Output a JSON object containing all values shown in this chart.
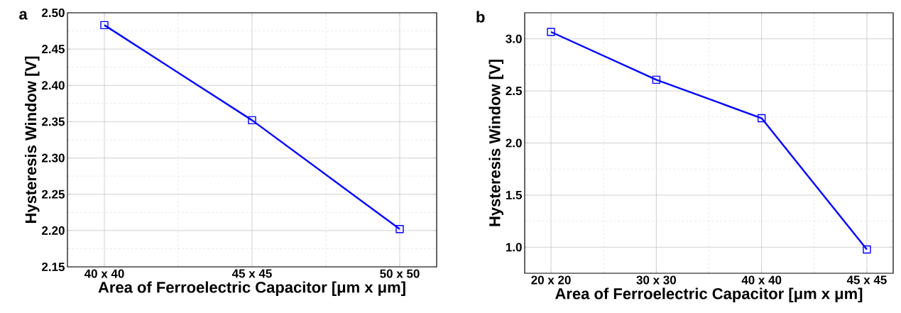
{
  "chart_data": [
    {
      "type": "line",
      "title": "a",
      "xlabel": "Area of Ferroelectric Capacitor [μm x μm]",
      "ylabel": "Hysteresis Window [V]",
      "categories": [
        "40 x 40",
        "45 x 45",
        "50 x 50"
      ],
      "series": [
        {
          "color": "#0000ff",
          "values": [
            2.483,
            2.352,
            2.202
          ]
        }
      ],
      "ylim": [
        2.15,
        2.5
      ],
      "yticks": [
        2.15,
        {
          "value": 2.2,
          "label": "2.20"
        },
        2.25,
        {
          "value": 2.3,
          "label": "2.30"
        },
        2.35,
        {
          "value": 2.4,
          "label": "2.40"
        },
        2.45,
        {
          "value": 2.5,
          "label": "2.50"
        }
      ],
      "grid": true,
      "marker": "square",
      "line_style": "solid"
    },
    {
      "type": "line",
      "title": "b",
      "xlabel": "Area of Ferroelectric Capacitor [μm x μm]",
      "ylabel": "Hysteresis Window [V]",
      "categories": [
        "20 x 20",
        "30 x 30",
        "40 x 40",
        "45 x 45"
      ],
      "series": [
        {
          "color": "#0000ff",
          "values": [
            3.066,
            2.607,
            2.238,
            0.978
          ]
        }
      ],
      "ylim": [
        0.75,
        3.25
      ],
      "yticks": [
        {
          "value": 1,
          "label": "1.0"
        },
        1.5,
        {
          "value": 2,
          "label": "2.0"
        },
        2.5,
        {
          "value": 3,
          "label": "3.0"
        }
      ],
      "grid": true,
      "marker": "square",
      "line_style": "solid"
    }
  ]
}
